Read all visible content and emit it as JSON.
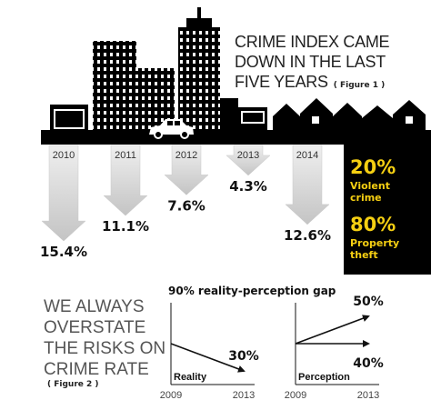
{
  "chart_data": [
    {
      "type": "arrow",
      "title": [
        "CRIME INDEX CAME",
        "DOWN IN THE LAST",
        "FIVE YEARS"
      ],
      "subtitle": "( Figure 1 )",
      "categories": [
        "2010",
        "2011",
        "2012",
        "2013",
        "2014"
      ],
      "values": [
        15.4,
        11.1,
        7.6,
        4.3,
        12.6
      ],
      "value_labels": [
        "15.4%",
        "11.1%",
        "7.6%",
        "4.3%",
        "12.6%"
      ],
      "ylim": [
        0,
        16
      ],
      "color": "#c9c9c9"
    },
    {
      "type": "line",
      "label": "Reality",
      "x": [
        2009,
        2013
      ],
      "xlim": [
        2009,
        2013
      ],
      "xticks": [
        2009,
        2013
      ],
      "ylim": [
        25,
        55
      ],
      "series": [
        {
          "color": "#111111",
          "values": [
            40,
            30
          ],
          "value_labels": [
            null,
            "30%"
          ]
        }
      ]
    },
    {
      "type": "line",
      "label": "Perception",
      "x": [
        2009,
        2013
      ],
      "xlim": [
        2009,
        2013
      ],
      "xticks": [
        2009,
        2013
      ],
      "ylim": [
        25,
        55
      ],
      "series": [
        {
          "color": "#111111",
          "values": [
            40,
            50
          ],
          "value_labels": [
            null,
            "50%"
          ]
        },
        {
          "color": "#111111",
          "values": [
            40,
            40
          ],
          "value_labels": [
            null,
            "40%"
          ]
        }
      ]
    }
  ],
  "stats": [
    {
      "value_label": "20%",
      "label": [
        "Violent",
        "crime"
      ]
    },
    {
      "value_label": "80%",
      "label": [
        "Property",
        "theft"
      ]
    }
  ],
  "figure2": {
    "title": [
      "WE ALWAYS",
      "OVERSTATE",
      "THE RISKS ON",
      "CRIME RATE"
    ],
    "subtitle": "( Figure 2 )",
    "gap_label": "90% reality-perception gap"
  }
}
